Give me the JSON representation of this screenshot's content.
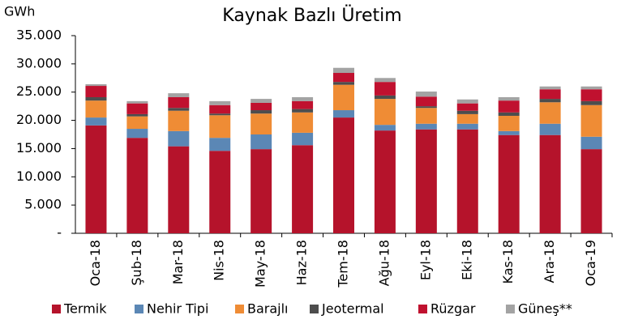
{
  "chart_data": {
    "type": "stacked-bar",
    "title": "Kaynak Bazlı Üretim",
    "y_label": "GWh",
    "categories": [
      "Oca-18",
      "Şub-18",
      "Mar-18",
      "Nis-18",
      "May-18",
      "Haz-18",
      "Tem-18",
      "Ağu-18",
      "Eyl-18",
      "Eki-18",
      "Kas-18",
      "Ara-18",
      "Oca-19"
    ],
    "series": [
      {
        "name": "Termik",
        "color": "#b5132b",
        "values": [
          19100,
          16900,
          15400,
          14600,
          14900,
          15600,
          20500,
          18200,
          18400,
          18400,
          17400,
          17400,
          14900
        ]
      },
      {
        "name": "Nehir Tipi",
        "color": "#5b87b5",
        "values": [
          1400,
          1600,
          2700,
          2300,
          2600,
          2200,
          1300,
          1000,
          1000,
          1000,
          700,
          2000,
          2200
        ]
      },
      {
        "name": "Barajlı",
        "color": "#ef8c35",
        "values": [
          3000,
          2200,
          3600,
          4000,
          3700,
          3600,
          4500,
          4600,
          2800,
          1700,
          2700,
          3800,
          5600
        ]
      },
      {
        "name": "Jeotermal",
        "color": "#4d4d4d",
        "values": [
          600,
          400,
          500,
          300,
          600,
          600,
          500,
          600,
          300,
          600,
          600,
          600,
          700
        ]
      },
      {
        "name": "Rüzgar",
        "color": "#c0112f",
        "values": [
          2000,
          1900,
          1900,
          1500,
          1300,
          1400,
          1600,
          2400,
          1700,
          1300,
          2100,
          1700,
          2100
        ]
      },
      {
        "name": "Güneş**",
        "color": "#a3a3a3",
        "values": [
          300,
          400,
          700,
          700,
          700,
          700,
          900,
          700,
          900,
          700,
          600,
          500,
          500
        ]
      }
    ],
    "ylim": [
      0,
      35000
    ],
    "yticks": [
      {
        "value": 0,
        "label": "-"
      },
      {
        "value": 5000,
        "label": "5.000"
      },
      {
        "value": 10000,
        "label": "10.000"
      },
      {
        "value": 15000,
        "label": "15.000"
      },
      {
        "value": 20000,
        "label": "20.000"
      },
      {
        "value": 25000,
        "label": "25.000"
      },
      {
        "value": 30000,
        "label": "30.000"
      },
      {
        "value": 35000,
        "label": "35.000"
      }
    ],
    "legend": "bottom"
  }
}
